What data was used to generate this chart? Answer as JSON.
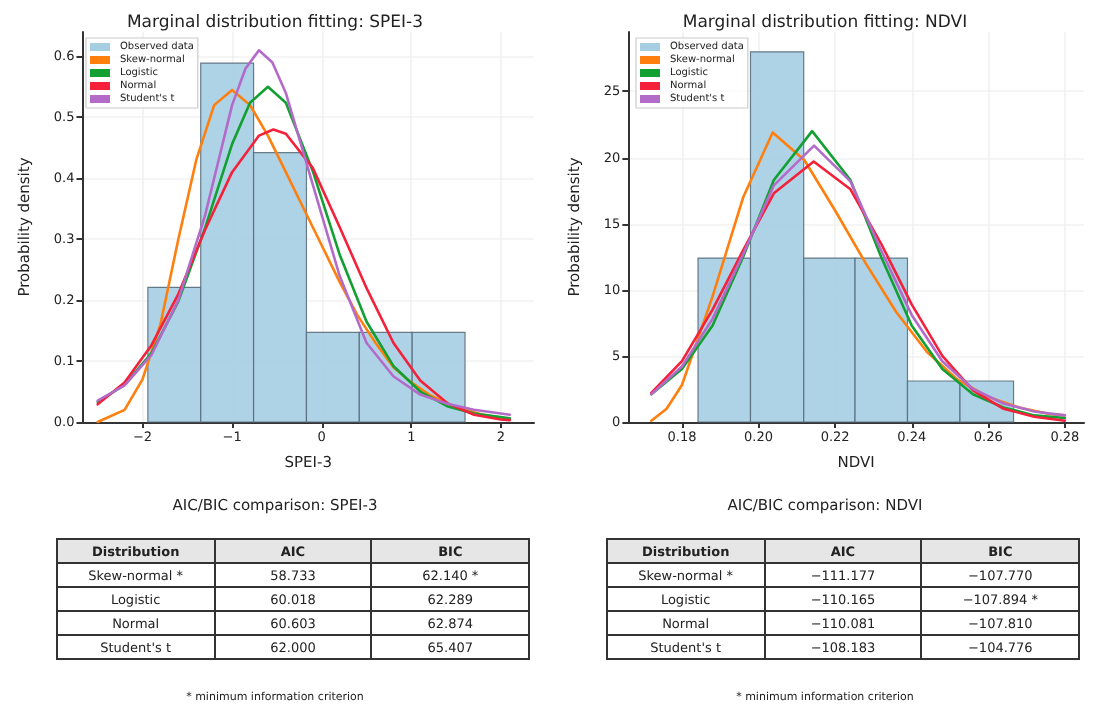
{
  "chart_data": [
    {
      "type": "histogram",
      "title": "Marginal distribution fitting: SPEI-3",
      "xlabel": "SPEI-3",
      "ylabel": "Probability density",
      "bins": [
        -1.94,
        -1.35,
        -0.76,
        -0.17,
        0.42,
        1.01,
        1.6
      ],
      "xlim": [
        -2.67,
        2.37
      ],
      "ylim": [
        0,
        0.64
      ],
      "xticks": [
        {
          "value": -2,
          "label": "−2"
        },
        {
          "value": -1,
          "label": "−1"
        },
        0,
        1,
        2
      ],
      "yticks": [
        {
          "value": 0,
          "label": "0.0"
        },
        0.1,
        0.2,
        0.3,
        0.4,
        0.5,
        0.6
      ],
      "grid": true,
      "legend": "top left",
      "series": [
        {
          "type": "histogram",
          "name": "Observed data",
          "color": "#a6cee3",
          "values": [
            0.221,
            0.589,
            0.442,
            0.147,
            0.147,
            0.147
          ]
        },
        {
          "type": "line",
          "name": "Skew-normal",
          "color": "#ff7f0e",
          "x": [
            -2.5,
            -2.2,
            -2.0,
            -1.8,
            -1.6,
            -1.4,
            -1.2,
            -1.0,
            -0.8,
            -0.6,
            -0.4,
            -0.2,
            0,
            0.2,
            0.4,
            0.6,
            0.8,
            1.0,
            1.2,
            1.4,
            1.6,
            1.8,
            2.1
          ],
          "values": [
            0.0,
            0.02,
            0.07,
            0.16,
            0.3,
            0.43,
            0.52,
            0.545,
            0.52,
            0.47,
            0.41,
            0.35,
            0.29,
            0.23,
            0.175,
            0.13,
            0.09,
            0.065,
            0.045,
            0.03,
            0.02,
            0.012,
            0.005
          ]
        },
        {
          "type": "line",
          "name": "Logistic",
          "color": "#12a032",
          "x": [
            -2.5,
            -2.2,
            -1.9,
            -1.6,
            -1.3,
            -1.0,
            -0.8,
            -0.6,
            -0.4,
            -0.1,
            0.2,
            0.5,
            0.8,
            1.1,
            1.4,
            1.7,
            2.1
          ],
          "values": [
            0.033,
            0.061,
            0.113,
            0.198,
            0.319,
            0.456,
            0.524,
            0.55,
            0.524,
            0.412,
            0.275,
            0.165,
            0.092,
            0.05,
            0.026,
            0.014,
            0.006
          ]
        },
        {
          "type": "line",
          "name": "Normal",
          "color": "#f5203a",
          "x": [
            -2.5,
            -2.2,
            -1.9,
            -1.6,
            -1.3,
            -1.0,
            -0.7,
            -0.54,
            -0.4,
            -0.1,
            0.2,
            0.5,
            0.8,
            1.1,
            1.4,
            1.7,
            2.0,
            2.1
          ],
          "values": [
            0.029,
            0.065,
            0.126,
            0.21,
            0.316,
            0.41,
            0.47,
            0.48,
            0.473,
            0.417,
            0.32,
            0.22,
            0.13,
            0.068,
            0.031,
            0.012,
            0.004,
            0.003
          ]
        },
        {
          "type": "line",
          "name": "Student's t",
          "color": "#b36bc9",
          "x": [
            -2.5,
            -2.2,
            -1.9,
            -1.6,
            -1.3,
            -1.0,
            -0.85,
            -0.7,
            -0.55,
            -0.4,
            -0.1,
            0.2,
            0.5,
            0.8,
            1.1,
            1.4,
            1.7,
            2.1
          ],
          "values": [
            0.035,
            0.06,
            0.11,
            0.2,
            0.34,
            0.52,
            0.58,
            0.61,
            0.59,
            0.54,
            0.39,
            0.24,
            0.13,
            0.075,
            0.045,
            0.03,
            0.02,
            0.012
          ]
        }
      ]
    },
    {
      "type": "histogram",
      "title": "Marginal distribution fitting: NDVI",
      "xlabel": "NDVI",
      "ylabel": "Probability density",
      "bins": [
        0.1842,
        0.1979,
        0.2118,
        0.2252,
        0.2389,
        0.2526,
        0.2666
      ],
      "xlim": [
        0.166,
        0.285
      ],
      "ylim": [
        0,
        29.5
      ],
      "xticks": [
        0.18,
        {
          "value": 0.2,
          "label": "0.20"
        },
        0.22,
        0.24,
        0.26,
        0.28
      ],
      "yticks": [
        0,
        5,
        10,
        15,
        20,
        25
      ],
      "grid": true,
      "legend": "top left",
      "series": [
        {
          "type": "histogram",
          "name": "Observed data",
          "color": "#a6cee3",
          "values": [
            12.4,
            28.0,
            12.4,
            12.4,
            3.1,
            3.1
          ]
        },
        {
          "type": "line",
          "name": "Skew-normal",
          "color": "#ff7f0e",
          "x": [
            0.172,
            0.176,
            0.18,
            0.188,
            0.196,
            0.2037,
            0.212,
            0.22,
            0.228,
            0.236,
            0.244,
            0.252,
            0.26,
            0.268,
            0.276,
            0.28
          ],
          "values": [
            0.1,
            1.0,
            2.8,
            9.5,
            17.0,
            21.9,
            19.8,
            16.0,
            12.0,
            8.3,
            5.3,
            3.2,
            1.9,
            1.1,
            0.6,
            0.5
          ]
        },
        {
          "type": "line",
          "name": "Logistic",
          "color": "#12a032",
          "x": [
            0.172,
            0.18,
            0.188,
            0.196,
            0.204,
            0.214,
            0.224,
            0.232,
            0.24,
            0.248,
            0.256,
            0.264,
            0.272,
            0.28
          ],
          "values": [
            2.1,
            4.0,
            7.3,
            12.5,
            18.3,
            22.0,
            18.3,
            12.5,
            7.3,
            4.0,
            2.1,
            1.1,
            0.5,
            0.3
          ]
        },
        {
          "type": "line",
          "name": "Normal",
          "color": "#f5203a",
          "x": [
            0.172,
            0.18,
            0.188,
            0.196,
            0.204,
            0.2144,
            0.224,
            0.232,
            0.24,
            0.248,
            0.256,
            0.264,
            0.272,
            0.28
          ],
          "values": [
            2.2,
            4.6,
            8.5,
            13.0,
            17.3,
            19.7,
            17.6,
            13.5,
            8.9,
            5.0,
            2.4,
            1.0,
            0.4,
            0.1
          ]
        },
        {
          "type": "line",
          "name": "Student's t",
          "color": "#b36bc9",
          "x": [
            0.172,
            0.18,
            0.188,
            0.196,
            0.204,
            0.2145,
            0.224,
            0.232,
            0.24,
            0.248,
            0.256,
            0.264,
            0.272,
            0.28
          ],
          "values": [
            2.1,
            4.2,
            7.8,
            12.7,
            17.9,
            20.9,
            18.2,
            13.0,
            8.1,
            4.6,
            2.5,
            1.4,
            0.8,
            0.5
          ]
        }
      ]
    },
    {
      "type": "other",
      "title": "AIC/BIC comparison: SPEI-3",
      "xlabel": "Distribution",
      "categories": [
        "Skew-normal *",
        "Logistic",
        "Normal",
        "Student's t"
      ],
      "series": [
        {
          "name": "AIC",
          "values": [
            58.733,
            60.018,
            60.603,
            62.0
          ],
          "value_labels": [
            "58.733",
            "60.018",
            "60.603",
            "62.000"
          ]
        },
        {
          "name": "BIC",
          "values": [
            62.14,
            62.289,
            62.874,
            65.407
          ],
          "value_labels": [
            "62.140 *",
            "62.289",
            "62.874",
            "65.407"
          ]
        }
      ],
      "annotations": [
        "* minimum information criterion"
      ]
    },
    {
      "type": "other",
      "title": "AIC/BIC comparison: NDVI",
      "xlabel": "Distribution",
      "categories": [
        "Skew-normal *",
        "Logistic",
        "Normal",
        "Student's t"
      ],
      "series": [
        {
          "name": "AIC",
          "values": [
            -111.177,
            -110.165,
            -110.081,
            -108.183
          ],
          "value_labels": [
            "−111.177",
            "−110.165",
            "−110.081",
            "−108.183"
          ]
        },
        {
          "name": "BIC",
          "values": [
            -107.77,
            -107.894,
            -107.81,
            -104.776
          ],
          "value_labels": [
            "−107.770",
            "−107.894 *",
            "−107.810",
            "−104.776"
          ]
        }
      ],
      "annotations": [
        "* minimum information criterion"
      ]
    }
  ]
}
